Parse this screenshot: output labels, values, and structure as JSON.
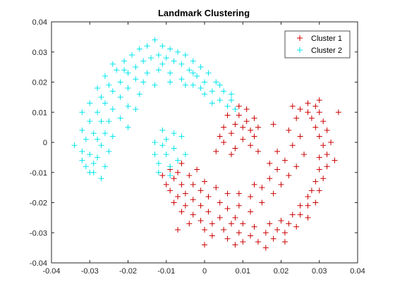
{
  "chart_data": {
    "type": "scatter",
    "title": "Landmark Clustering",
    "xlabel": "",
    "ylabel": "",
    "xlim": [
      -0.04,
      0.04
    ],
    "ylim": [
      -0.04,
      0.04
    ],
    "xticks": [
      -0.04,
      -0.03,
      -0.02,
      -0.01,
      0,
      0.01,
      0.02,
      0.03,
      0.04
    ],
    "yticks": [
      -0.04,
      -0.03,
      -0.02,
      -0.01,
      0,
      0.01,
      0.02,
      0.03,
      0.04
    ],
    "xtick_labels": [
      "-0.04",
      "-0.03",
      "-0.02",
      "-0.01",
      "0",
      "0.01",
      "0.02",
      "0.03",
      "0.04"
    ],
    "ytick_labels": [
      "-0.04",
      "-0.03",
      "-0.02",
      "-0.01",
      "0",
      "0.01",
      "0.02",
      "0.03",
      "0.04"
    ],
    "grid": false,
    "legend_position": "top-right",
    "marker": "+",
    "series": [
      {
        "name": "Cluster 1",
        "color": "#cc0000",
        "points": [
          [
            -0.011,
            -0.011
          ],
          [
            -0.009,
            -0.009
          ],
          [
            -0.008,
            -0.012
          ],
          [
            -0.01,
            -0.014
          ],
          [
            -0.007,
            -0.01
          ],
          [
            -0.009,
            -0.016
          ],
          [
            -0.006,
            -0.014
          ],
          [
            -0.007,
            -0.018
          ],
          [
            -0.005,
            -0.017
          ],
          [
            -0.008,
            -0.02
          ],
          [
            -0.005,
            -0.021
          ],
          [
            -0.003,
            -0.019
          ],
          [
            -0.006,
            -0.023
          ],
          [
            -0.003,
            -0.024
          ],
          [
            -0.001,
            -0.021
          ],
          [
            -0.004,
            -0.027
          ],
          [
            -0.001,
            -0.026
          ],
          [
            0.001,
            -0.023
          ],
          [
            0.0,
            -0.029
          ],
          [
            0.002,
            -0.027
          ],
          [
            0.004,
            -0.025
          ],
          [
            0.002,
            -0.031
          ],
          [
            0.005,
            -0.029
          ],
          [
            0.007,
            -0.027
          ],
          [
            0.006,
            -0.032
          ],
          [
            0.009,
            -0.03
          ],
          [
            0.01,
            -0.027
          ],
          [
            0.01,
            -0.033
          ],
          [
            0.012,
            -0.031
          ],
          [
            0.013,
            -0.028
          ],
          [
            0.014,
            -0.033
          ],
          [
            0.016,
            -0.03
          ],
          [
            0.017,
            -0.027
          ],
          [
            0.018,
            -0.032
          ],
          [
            0.019,
            -0.029
          ],
          [
            0.02,
            -0.026
          ],
          [
            0.021,
            -0.03
          ],
          [
            0.022,
            -0.027
          ],
          [
            0.023,
            -0.024
          ],
          [
            0.024,
            -0.028
          ],
          [
            0.025,
            -0.024
          ],
          [
            0.025,
            -0.021
          ],
          [
            0.027,
            -0.025
          ],
          [
            0.027,
            -0.021
          ],
          [
            0.027,
            -0.018
          ],
          [
            0.029,
            -0.02
          ],
          [
            0.028,
            -0.016
          ],
          [
            0.03,
            -0.016
          ],
          [
            0.029,
            -0.013
          ],
          [
            0.031,
            -0.012
          ],
          [
            0.03,
            -0.009
          ],
          [
            0.032,
            -0.008
          ],
          [
            0.03,
            -0.005
          ],
          [
            0.032,
            -0.004
          ],
          [
            0.031,
            -0.001
          ],
          [
            0.033,
            0.0
          ],
          [
            0.03,
            0.002
          ],
          [
            0.032,
            0.004
          ],
          [
            0.029,
            0.005
          ],
          [
            0.031,
            0.007
          ],
          [
            0.028,
            0.008
          ],
          [
            0.03,
            0.01
          ],
          [
            0.027,
            0.01
          ],
          [
            0.029,
            0.012
          ],
          [
            0.025,
            0.011
          ],
          [
            0.027,
            0.013
          ],
          [
            0.023,
            0.012
          ],
          [
            0.024,
            0.008
          ],
          [
            0.022,
            0.004
          ],
          [
            0.025,
            0.002
          ],
          [
            0.023,
            -0.001
          ],
          [
            0.026,
            -0.004
          ],
          [
            0.024,
            -0.008
          ],
          [
            0.021,
            -0.006
          ],
          [
            0.022,
            -0.011
          ],
          [
            0.019,
            -0.009
          ],
          [
            0.02,
            -0.014
          ],
          [
            0.017,
            -0.012
          ],
          [
            0.018,
            -0.017
          ],
          [
            0.015,
            -0.015
          ],
          [
            0.015,
            -0.02
          ],
          [
            0.012,
            -0.018
          ],
          [
            0.012,
            -0.023
          ],
          [
            0.009,
            -0.021
          ],
          [
            0.008,
            -0.025
          ],
          [
            0.006,
            -0.022
          ],
          [
            0.004,
            -0.02
          ],
          [
            0.001,
            -0.018
          ],
          [
            -0.001,
            -0.016
          ],
          [
            -0.003,
            -0.014
          ],
          [
            -0.004,
            -0.011
          ],
          [
            -0.006,
            -0.007
          ],
          [
            -0.002,
            -0.009
          ],
          [
            0.0,
            -0.013
          ],
          [
            0.003,
            -0.015
          ],
          [
            0.006,
            -0.017
          ],
          [
            0.009,
            -0.017
          ],
          [
            0.013,
            -0.014
          ],
          [
            0.017,
            -0.007
          ],
          [
            0.019,
            -0.003
          ],
          [
            0.005,
            0.0
          ],
          [
            0.007,
            0.003
          ],
          [
            0.005,
            0.005
          ],
          [
            0.008,
            0.006
          ],
          [
            0.006,
            0.009
          ],
          [
            0.009,
            0.009
          ],
          [
            0.011,
            0.011
          ],
          [
            0.009,
            0.012
          ],
          [
            0.011,
            0.007
          ],
          [
            0.012,
            0.004
          ],
          [
            0.01,
            0.001
          ],
          [
            0.008,
            -0.002
          ],
          [
            0.012,
            -0.001
          ],
          [
            0.013,
            0.002
          ],
          [
            0.007,
            -0.004
          ],
          [
            0.004,
            0.002
          ],
          [
            0.013,
            0.008
          ],
          [
            0.014,
            0.005
          ],
          [
            0.003,
            -0.003
          ],
          [
            0.01,
            0.005
          ],
          [
            -0.007,
            -0.029
          ],
          [
            0.0,
            -0.034
          ],
          [
            0.008,
            -0.034
          ],
          [
            0.016,
            -0.035
          ],
          [
            0.021,
            -0.033
          ],
          [
            0.035,
            0.01
          ],
          [
            0.034,
            -0.006
          ],
          [
            0.03,
            0.014
          ],
          [
            0.018,
            0.006
          ],
          [
            0.014,
            -0.003
          ]
        ]
      },
      {
        "name": "Cluster 2",
        "color": "#00e5ee",
        "points": [
          [
            -0.034,
            -0.001
          ],
          [
            -0.032,
            -0.003
          ],
          [
            -0.031,
            0.001
          ],
          [
            -0.032,
            -0.006
          ],
          [
            -0.03,
            -0.004
          ],
          [
            -0.031,
            -0.008
          ],
          [
            -0.029,
            -0.007
          ],
          [
            -0.029,
            -0.01
          ],
          [
            -0.027,
            -0.012
          ],
          [
            -0.028,
            -0.005
          ],
          [
            -0.032,
            0.004
          ],
          [
            -0.03,
            0.007
          ],
          [
            -0.032,
            0.01
          ],
          [
            -0.029,
            0.003
          ],
          [
            -0.028,
            0.01
          ],
          [
            -0.03,
            0.013
          ],
          [
            -0.027,
            0.015
          ],
          [
            -0.028,
            0.018
          ],
          [
            -0.026,
            0.013
          ],
          [
            -0.025,
            0.019
          ],
          [
            -0.026,
            0.022
          ],
          [
            -0.024,
            0.017
          ],
          [
            -0.023,
            0.024
          ],
          [
            -0.024,
            0.026
          ],
          [
            -0.022,
            0.02
          ],
          [
            -0.021,
            0.027
          ],
          [
            -0.02,
            0.023
          ],
          [
            -0.019,
            0.029
          ],
          [
            -0.018,
            0.025
          ],
          [
            -0.017,
            0.031
          ],
          [
            -0.016,
            0.027
          ],
          [
            -0.015,
            0.032
          ],
          [
            -0.014,
            0.028
          ],
          [
            -0.013,
            0.034
          ],
          [
            -0.012,
            0.029
          ],
          [
            -0.011,
            0.032
          ],
          [
            -0.01,
            0.028
          ],
          [
            -0.009,
            0.031
          ],
          [
            -0.008,
            0.027
          ],
          [
            -0.007,
            0.03
          ],
          [
            -0.006,
            0.026
          ],
          [
            -0.005,
            0.029
          ],
          [
            -0.004,
            0.024
          ],
          [
            -0.003,
            0.027
          ],
          [
            -0.002,
            0.022
          ],
          [
            -0.001,
            0.025
          ],
          [
            0.0,
            0.02
          ],
          [
            0.001,
            0.023
          ],
          [
            0.002,
            0.017
          ],
          [
            0.003,
            0.02
          ],
          [
            0.004,
            0.014
          ],
          [
            0.005,
            0.017
          ],
          [
            0.006,
            0.012
          ],
          [
            0.007,
            0.014
          ],
          [
            0.008,
            0.011
          ],
          [
            0.002,
            0.013
          ],
          [
            0.0,
            0.016
          ],
          [
            -0.003,
            0.019
          ],
          [
            -0.006,
            0.021
          ],
          [
            -0.009,
            0.023
          ],
          [
            -0.012,
            0.024
          ],
          [
            -0.015,
            0.023
          ],
          [
            -0.018,
            0.021
          ],
          [
            -0.02,
            0.018
          ],
          [
            -0.022,
            0.015
          ],
          [
            -0.024,
            0.011
          ],
          [
            -0.025,
            0.007
          ],
          [
            -0.026,
            0.003
          ],
          [
            -0.027,
            -0.001
          ],
          [
            -0.025,
            -0.003
          ],
          [
            -0.024,
            0.002
          ],
          [
            -0.022,
            0.008
          ],
          [
            -0.02,
            0.012
          ],
          [
            -0.017,
            0.016
          ],
          [
            -0.013,
            0.019
          ],
          [
            -0.009,
            0.02
          ],
          [
            -0.005,
            0.019
          ],
          [
            -0.001,
            0.018
          ],
          [
            -0.016,
            0.02
          ],
          [
            -0.011,
            0.026
          ],
          [
            -0.028,
            0.001
          ],
          [
            -0.026,
            -0.008
          ],
          [
            -0.03,
            -0.01
          ],
          [
            -0.027,
            0.007
          ],
          [
            -0.021,
            0.024
          ],
          [
            -0.01,
            -0.004
          ],
          [
            -0.012,
            -0.007
          ],
          [
            -0.009,
            -0.008
          ],
          [
            -0.011,
            -0.001
          ],
          [
            -0.013,
            -0.004
          ],
          [
            -0.008,
            -0.002
          ],
          [
            -0.01,
            0.001
          ],
          [
            -0.007,
            -0.006
          ],
          [
            -0.012,
            -0.01
          ],
          [
            -0.008,
            0.003
          ],
          [
            -0.005,
            -0.004
          ],
          [
            -0.013,
            0.0
          ],
          [
            -0.006,
            0.002
          ],
          [
            -0.011,
            0.004
          ],
          [
            -0.009,
            -0.011
          ],
          [
            -0.02,
            0.005
          ],
          [
            -0.018,
            0.011
          ],
          [
            -0.003,
            0.023
          ],
          [
            0.004,
            0.019
          ],
          [
            0.007,
            0.016
          ]
        ]
      }
    ]
  }
}
